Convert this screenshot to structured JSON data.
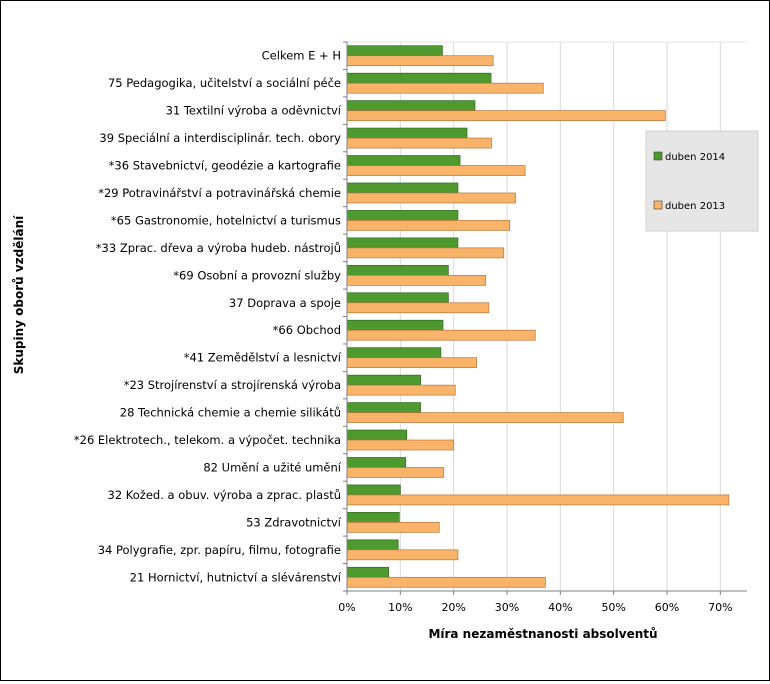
{
  "chart_data": {
    "type": "bar",
    "orientation": "horizontal",
    "xlabel": "Míra nezaměstnanosti absolventů",
    "ylabel": "Skupiny oborů vzdělání",
    "xlim": [
      0,
      75
    ],
    "xticks": [
      0,
      10,
      20,
      30,
      40,
      50,
      60,
      70
    ],
    "xtick_labels": [
      "0%",
      "10%",
      "20%",
      "30%",
      "40%",
      "50%",
      "60%",
      "70%"
    ],
    "grid": "vertical",
    "legend_position": "right",
    "categories": [
      "Celkem E + H",
      "75 Pedagogika, učitelství a sociální péče",
      "31 Textilní výroba a oděvnictví",
      "39 Speciální a interdisciplinár. tech. obory",
      "*36 Stavebnictví, geodézie a kartografie",
      "*29 Potravinářství a potravinářská chemie",
      "*65 Gastronomie, hotelnictví a turismus",
      "*33 Zprac. dřeva a výroba hudeb. nástrojů",
      "*69 Osobní a provozní služby",
      "37 Doprava a spoje",
      "*66 Obchod",
      "*41 Zemědělství a lesnictví",
      "*23 Strojírenství a strojírenská výroba",
      "28 Technická chemie a chemie silikátů",
      "*26 Elektrotech., telekom. a výpočet. technika",
      "82 Umění a užité umění",
      "32 Kožed. a obuv. výroba a zprac. plastů",
      "53 Zdravotnictví",
      "34 Polygrafie, zpr. papíru, filmu, fotografie",
      "21 Hornictví, hutnictví a slévárenství"
    ],
    "series": [
      {
        "name": "duben 2014",
        "color": "#4E9A2F",
        "values": [
          17.9,
          27.0,
          24.0,
          22.5,
          21.2,
          20.8,
          20.8,
          20.8,
          19.0,
          19.0,
          18.0,
          17.6,
          13.8,
          13.8,
          11.2,
          11.0,
          10.0,
          9.8,
          9.6,
          7.8
        ]
      },
      {
        "name": "duben 2013",
        "color": "#F9B46A",
        "values": [
          27.4,
          36.8,
          59.7,
          27.1,
          33.4,
          31.6,
          30.5,
          29.4,
          26.0,
          26.6,
          35.3,
          24.3,
          20.3,
          51.8,
          20.0,
          18.1,
          71.6,
          17.3,
          20.8,
          37.2
        ]
      }
    ]
  }
}
